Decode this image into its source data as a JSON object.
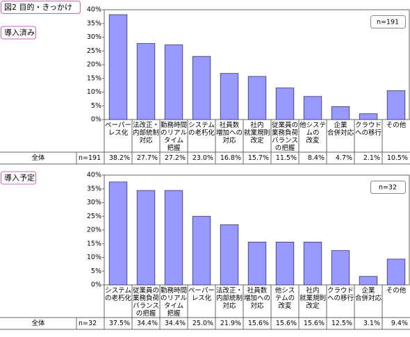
{
  "chart_data": [
    {
      "type": "bar",
      "title": "図2 目的・きっかけ",
      "label": "導入済み",
      "n_label": "n=191",
      "row_label": "全体",
      "color": "#9999ff",
      "categories": [
        "ペーパー\nレス化",
        "法改正・\n内部統制\n対応",
        "勤務時間\nのリアル\nタイム\n把握",
        "システム\nの老朽化",
        "社員数\n増加への\n対応",
        "社内\n就業規則\n改定",
        "従業員の\n業務負荷\nバランス\nの把握",
        "他システ\nムの\n改変",
        "企業\n合併対応",
        "クラウド\nへの移行",
        "その他"
      ],
      "values": [
        38.2,
        27.7,
        27.2,
        23.0,
        16.8,
        15.7,
        11.5,
        8.4,
        4.7,
        2.1,
        10.5
      ],
      "value_labels": [
        "38.2%",
        "27.7%",
        "27.2%",
        "23.0%",
        "16.8%",
        "15.7%",
        "11.5%",
        "8.4%",
        "4.7%",
        "2.1%",
        "10.5%"
      ],
      "ylim": [
        0,
        40
      ],
      "grid": false,
      "yticks": [
        {
          "value": 0,
          "label": "0%"
        },
        {
          "value": 5,
          "label": "5%"
        },
        {
          "value": 10,
          "label": "10%"
        },
        {
          "value": 15,
          "label": "15%"
        },
        {
          "value": 20,
          "label": "20%"
        },
        {
          "value": 25,
          "label": "25%"
        },
        {
          "value": 30,
          "label": "30%"
        },
        {
          "value": 35,
          "label": "35%"
        },
        {
          "value": 40,
          "label": "40%"
        }
      ]
    },
    {
      "type": "bar",
      "label": "導入予定",
      "n_label": "n=32",
      "row_label": "全体",
      "color": "#9999ff",
      "categories": [
        "システム\nの老朽化",
        "従業員の\n業務負荷\nバランス\nの把握",
        "勤務時間\nのリアル\nタイム\n把握",
        "ペーパー\nレス化",
        "法改正・\n内部統制\n対応",
        "社員数\n増加への\n対応",
        "他シス\nテムの\n改変",
        "社内\n就業規則\n改定",
        "クラウド\nへの移行",
        "企業\n合併対応",
        "その他"
      ],
      "values": [
        37.5,
        34.4,
        34.4,
        25.0,
        21.9,
        15.6,
        15.6,
        15.6,
        12.5,
        3.1,
        9.4
      ],
      "value_labels": [
        "37.5%",
        "34.4%",
        "34.4%",
        "25.0%",
        "21.9%",
        "15.6%",
        "15.6%",
        "15.6%",
        "12.5%",
        "3.1%",
        "9.4%"
      ],
      "ylim": [
        0,
        40
      ],
      "grid": false,
      "yticks": [
        {
          "value": 0,
          "label": "0%"
        },
        {
          "value": 5,
          "label": "5%"
        },
        {
          "value": 10,
          "label": "10%"
        },
        {
          "value": 15,
          "label": "15%"
        },
        {
          "value": 20,
          "label": "20%"
        },
        {
          "value": 25,
          "label": "25%"
        },
        {
          "value": 30,
          "label": "30%"
        },
        {
          "value": 35,
          "label": "35%"
        },
        {
          "value": 40,
          "label": "40%"
        }
      ]
    }
  ]
}
